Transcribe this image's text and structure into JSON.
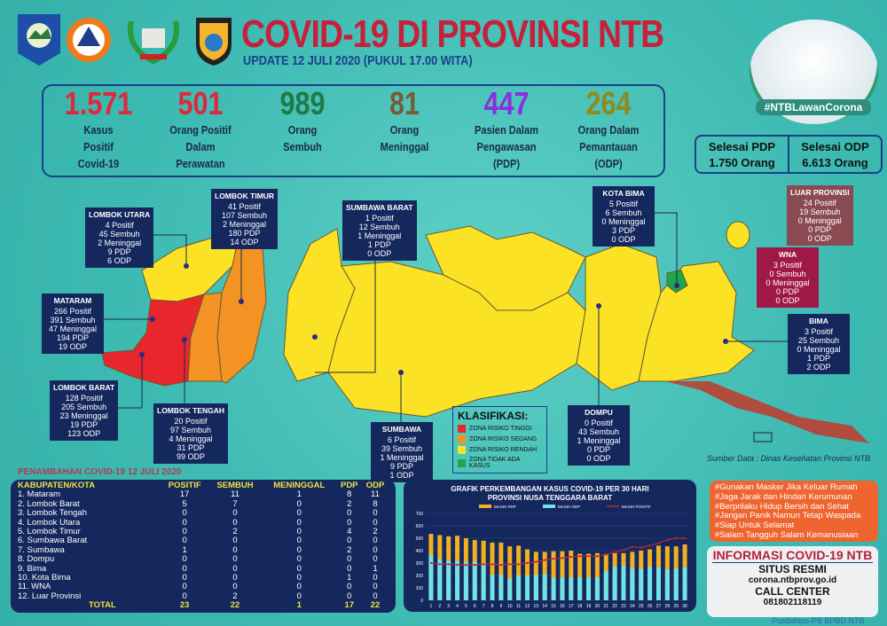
{
  "header": {
    "title": "COVID-19 DI PROVINSI NTB",
    "subtitle": "UPDATE 12 JULI 2020 (PUKUL 17.00 WITA)",
    "logos": [
      "Provinsi NTB",
      "BPBD",
      "Wira Bhakti",
      "Polda NTB"
    ]
  },
  "stats": [
    {
      "num": "1.571",
      "label": [
        "Kasus",
        "Positif",
        "Covid-19"
      ],
      "color": "#e0283c"
    },
    {
      "num": "501",
      "label": [
        "Orang Positif",
        "Dalam",
        "Perawatan"
      ],
      "color": "#e0283c"
    },
    {
      "num": "989",
      "label": [
        "Orang",
        "Sembuh"
      ],
      "color": "#1f7a46"
    },
    {
      "num": "81",
      "label": [
        "Orang",
        "Meninggal"
      ],
      "color": "#7a5a32"
    },
    {
      "num": "447",
      "label": [
        "Pasien Dalam",
        "Pengawasan",
        "(PDP)"
      ],
      "color": "#8a2ee0"
    },
    {
      "num": "264",
      "label": [
        "Orang Dalam",
        "Pemantauan",
        "(ODP)"
      ],
      "color": "#8f8a1a"
    }
  ],
  "selesai": {
    "pdp_label": "Selesai PDP",
    "pdp_value": "1.750 Orang",
    "odp_label": "Selesai ODP",
    "odp_value": "6.613 Orang"
  },
  "campaign": "#NTBLawanCorona",
  "regions": [
    {
      "name": "LOMBOK UTARA",
      "lines": [
        "4 Positif",
        "45 Sembuh",
        "2 Meninggal",
        "9 PDP",
        "6 ODP"
      ]
    },
    {
      "name": "LOMBOK TIMUR",
      "lines": [
        "41 Positif",
        "107 Sembuh",
        "2 Meninggal",
        "180 PDP",
        "14 ODP"
      ]
    },
    {
      "name": "MATARAM",
      "lines": [
        "266 Positif",
        "391 Sembuh",
        "47 Meninggal",
        "194 PDP",
        "19 ODP"
      ]
    },
    {
      "name": "LOMBOK BARAT",
      "lines": [
        "128 Positif",
        "205 Sembuh",
        "23 Meninggal",
        "19 PDP",
        "123 ODP"
      ]
    },
    {
      "name": "LOMBOK TENGAH",
      "lines": [
        "20 Positif",
        "97 Sembuh",
        "4 Meninggal",
        "31 PDP",
        "99 ODP"
      ]
    },
    {
      "name": "SUMBAWA BARAT",
      "lines": [
        "1 Positif",
        "12 Sembuh",
        "1 Meninggal",
        "1 PDP",
        "0 ODP"
      ]
    },
    {
      "name": "SUMBAWA",
      "lines": [
        "6 Positif",
        "39 Sembuh",
        "1 Meninggal",
        "9 PDP",
        "1 ODP"
      ]
    },
    {
      "name": "DOMPU",
      "lines": [
        "0 Positif",
        "43 Sembuh",
        "1 Meninggal",
        "0 PDP",
        "0 ODP"
      ]
    },
    {
      "name": "KOTA BIMA",
      "lines": [
        "5 Positif",
        "6 Sembuh",
        "0 Meninggal",
        "3 PDP",
        "0 ODP"
      ]
    },
    {
      "name": "LUAR PROVINSI",
      "lines": [
        "24 Positif",
        "19 Sembuh",
        "0 Meninggal",
        "0 PDP",
        "0 ODP"
      ]
    },
    {
      "name": "WNA",
      "lines": [
        "3 Positif",
        "0 Sembuh",
        "0 Meninggal",
        "0 PDP",
        "0 ODP"
      ]
    },
    {
      "name": "BIMA",
      "lines": [
        "3 Positif",
        "25 Sembuh",
        "0 Meninggal",
        "1 PDP",
        "2 ODP"
      ]
    }
  ],
  "legend": {
    "title": "KLASIFIKASI:",
    "items": [
      {
        "label": "ZONA RISIKO TINGGI",
        "color": "#e8262c"
      },
      {
        "label": "ZONA RISIKO SEDANG",
        "color": "#f39323"
      },
      {
        "label": "ZONA RISIKO RENDAH",
        "color": "#fbe225"
      },
      {
        "label": "ZONA TIDAK ADA KASUS",
        "color": "#1fa54a"
      }
    ]
  },
  "table": {
    "title": "PENAMBAHAN COVID-19 12 JULI 2020",
    "headers": [
      "KABUPATEN/KOTA",
      "POSITIF",
      "SEMBUH",
      "MENINGGAL",
      "PDP",
      "ODP"
    ],
    "rows": [
      [
        "1. Mataram",
        "17",
        "11",
        "1",
        "8",
        "11"
      ],
      [
        "2. Lombok Barat",
        "5",
        "7",
        "0",
        "2",
        "8"
      ],
      [
        "3. Lombok Tengah",
        "0",
        "0",
        "0",
        "0",
        "0"
      ],
      [
        "4. Lombok Utara",
        "0",
        "0",
        "0",
        "0",
        "0"
      ],
      [
        "5. Lombok Timur",
        "0",
        "2",
        "0",
        "4",
        "2"
      ],
      [
        "6. Sumbawa Barat",
        "0",
        "0",
        "0",
        "0",
        "0"
      ],
      [
        "7. Sumbawa",
        "1",
        "0",
        "0",
        "2",
        "0"
      ],
      [
        "8. Dompu",
        "0",
        "0",
        "0",
        "0",
        "0"
      ],
      [
        "9. Bima",
        "0",
        "0",
        "0",
        "0",
        "1"
      ],
      [
        "10. Kota Bima",
        "0",
        "0",
        "0",
        "1",
        "0"
      ],
      [
        "11. WNA",
        "0",
        "0",
        "0",
        "0",
        "0"
      ],
      [
        "12. Luar Provinsi",
        "0",
        "2",
        "0",
        "0",
        "0"
      ]
    ],
    "total": [
      "TOTAL",
      "23",
      "22",
      "1",
      "17",
      "22"
    ]
  },
  "chart_data": {
    "type": "bar",
    "title": "GRAFIK PERKEMBANGAN KASUS COVID-19 PER 30 HARI",
    "subtitle": "PROVINSI NUSA TENGGARA BARAT",
    "categories": [
      "1",
      "2",
      "3",
      "4",
      "5",
      "6",
      "7",
      "8",
      "9",
      "10",
      "11",
      "12",
      "13",
      "14",
      "15",
      "16",
      "17",
      "18",
      "19",
      "20",
      "21",
      "22",
      "23",
      "24",
      "25",
      "26",
      "27",
      "28",
      "29",
      "30"
    ],
    "ylim": [
      0,
      700
    ],
    "yticks": [
      "0",
      "100",
      "200",
      "300",
      "400",
      "500",
      "600",
      "700"
    ],
    "grid": true,
    "legend_position": "top",
    "series": [
      {
        "name": "MASIH PDP",
        "type": "bar",
        "color": "#f2b020",
        "values": [
          535,
          525,
          515,
          520,
          500,
          485,
          480,
          465,
          465,
          435,
          440,
          410,
          390,
          390,
          395,
          395,
          400,
          375,
          375,
          380,
          375,
          380,
          380,
          390,
          400,
          410,
          440,
          435,
          435,
          450
        ]
      },
      {
        "name": "MASIH ODP",
        "type": "bar",
        "color": "#6fe3e8",
        "values": [
          365,
          330,
          320,
          315,
          310,
          310,
          285,
          205,
          205,
          175,
          200,
          195,
          205,
          210,
          180,
          185,
          185,
          185,
          185,
          185,
          235,
          270,
          280,
          260,
          255,
          270,
          265,
          250,
          255,
          265
        ]
      },
      {
        "name": "MASIH POSITIF",
        "type": "line",
        "color": "#c8203a",
        "values": [
          300,
          290,
          290,
          285,
          285,
          285,
          290,
          290,
          285,
          290,
          290,
          300,
          310,
          325,
          335,
          340,
          350,
          355,
          355,
          355,
          370,
          385,
          405,
          430,
          425,
          440,
          460,
          485,
          500,
          500
        ]
      }
    ]
  },
  "source": "Sumber Data : Dinas Kesehatan Provinsi NTB",
  "tips": [
    "#Gunakan Masker Jika Keluar Rumah",
    "#Jaga Jarak dan Hindari Kerumunan",
    "#Berprilaku Hidup Bersih dan Sehat",
    "#Jangan Panik Namun Tetap Waspada",
    "#Siap Untuk Selamat",
    "#Salam Tangguh Salam Kemanusiaan"
  ],
  "info": {
    "title": "INFORMASI COVID-19 NTB",
    "site_label": "SITUS RESMI",
    "site": "corona.ntbprov.go.id",
    "cc_label": "CALL CENTER",
    "cc": "081802118119"
  },
  "footer": "Pusdalops-PB BPBD NTB"
}
